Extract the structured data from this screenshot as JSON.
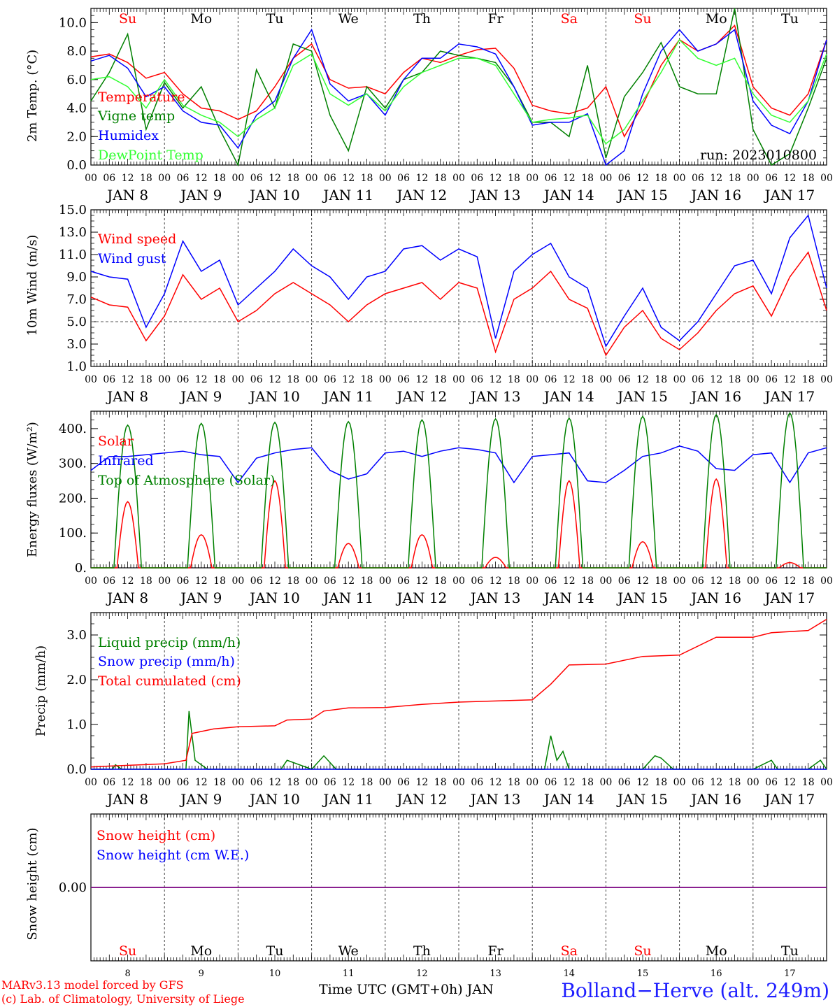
{
  "run_label": "run: 2023010800",
  "day_names": [
    "Su",
    "Mo",
    "Tu",
    "We",
    "Th",
    "Fr",
    "Sa",
    "Su",
    "Mo",
    "Tu"
  ],
  "weekend_flags": [
    true,
    false,
    false,
    false,
    false,
    false,
    true,
    true,
    false,
    false
  ],
  "date_labels": [
    "JAN  8",
    "JAN  9",
    "JAN 10",
    "JAN 11",
    "JAN 12",
    "JAN 13",
    "JAN 14",
    "JAN 15",
    "JAN 16",
    "JAN 17"
  ],
  "day_numbers": [
    "8",
    "9",
    "10",
    "11",
    "12",
    "13",
    "14",
    "15",
    "16",
    "17"
  ],
  "hour_ticks": [
    "00",
    "06",
    "12",
    "18"
  ],
  "last_hour_tick": "00",
  "colors": {
    "red": "#ff0000",
    "darkgreen": "#008000",
    "blue": "#0000ff",
    "lightgreen": "#33ff33",
    "purple": "#7a0080"
  },
  "footer": {
    "model_line": "MARv3.13 model forced by GFS",
    "lab_line": "(c) Lab. of Climatology, University of Liege",
    "time_axis_label": "Time UTC (GMT+0h) JAN",
    "station": "Bolland−Herve (alt. 249m)"
  },
  "chart_data": [
    {
      "type": "line",
      "ylabel": "2m Temp. (°C)",
      "ylim": [
        0,
        11
      ],
      "yticks": [
        "0.0",
        "2.0",
        "4.0",
        "6.0",
        "8.0",
        "10.0"
      ],
      "ytick_values": [
        0,
        2,
        4,
        6,
        8,
        10
      ],
      "x_unit": "hours since 2023-01-08 00 UTC",
      "series": [
        {
          "name": "Temperature",
          "color": "#ff0000",
          "x": [
            0,
            6,
            12,
            18,
            24,
            30,
            36,
            42,
            48,
            54,
            60,
            66,
            72,
            78,
            84,
            90,
            96,
            102,
            108,
            114,
            120,
            126,
            132,
            138,
            144,
            150,
            156,
            162,
            168,
            174,
            180,
            186,
            192,
            198,
            204,
            210,
            216,
            222,
            228,
            234,
            240
          ],
          "y": [
            7.6,
            7.8,
            7.2,
            6.1,
            6.5,
            5.0,
            4.0,
            3.8,
            3.2,
            3.8,
            5.5,
            7.5,
            8.5,
            6.0,
            5.4,
            5.5,
            5.0,
            6.5,
            7.5,
            7.2,
            7.7,
            8.1,
            8.2,
            6.8,
            4.2,
            3.8,
            3.6,
            4.0,
            5.5,
            2.0,
            4.2,
            7.0,
            8.8,
            8.0,
            8.5,
            9.8,
            5.5,
            4.0,
            3.5,
            5.0,
            8.8
          ]
        },
        {
          "name": "Vigne temp",
          "color": "#008000",
          "x": [
            0,
            6,
            12,
            18,
            24,
            30,
            36,
            42,
            48,
            54,
            60,
            66,
            72,
            78,
            84,
            90,
            96,
            102,
            108,
            114,
            120,
            126,
            132,
            138,
            144,
            150,
            156,
            162,
            168,
            174,
            180,
            186,
            192,
            198,
            204,
            210,
            216,
            222,
            228,
            234,
            240
          ],
          "y": [
            4.5,
            6.5,
            9.2,
            2.5,
            5.8,
            4.0,
            5.5,
            2.5,
            0.0,
            6.7,
            4.0,
            8.5,
            8.0,
            3.5,
            1.0,
            5.5,
            4.0,
            6.0,
            6.5,
            8.0,
            7.7,
            7.5,
            7.2,
            5.5,
            3.0,
            3.0,
            2.0,
            7.0,
            0.5,
            4.8,
            6.5,
            8.6,
            5.5,
            5.0,
            5.0,
            11.0,
            2.5,
            0.0,
            0.8,
            4.0,
            7.5
          ]
        },
        {
          "name": "Humidex",
          "color": "#0000ff",
          "x": [
            0,
            6,
            12,
            18,
            24,
            30,
            36,
            42,
            48,
            54,
            60,
            66,
            72,
            78,
            84,
            90,
            96,
            102,
            108,
            114,
            120,
            126,
            132,
            138,
            144,
            150,
            156,
            162,
            168,
            174,
            180,
            186,
            192,
            198,
            204,
            210,
            216,
            222,
            228,
            234,
            240
          ],
          "y": [
            7.3,
            7.7,
            6.8,
            4.8,
            5.5,
            3.8,
            3.0,
            2.8,
            1.2,
            3.5,
            4.5,
            7.5,
            9.5,
            5.7,
            4.5,
            5.0,
            3.5,
            6.0,
            7.5,
            7.5,
            8.5,
            8.3,
            7.8,
            5.5,
            2.8,
            3.0,
            3.0,
            3.6,
            0.0,
            1.0,
            5.0,
            8.0,
            9.5,
            8.0,
            8.5,
            9.5,
            4.5,
            2.8,
            2.2,
            4.5,
            8.8
          ]
        },
        {
          "name": "DewPoint Temp",
          "color": "#33ff33",
          "x": [
            0,
            6,
            12,
            18,
            24,
            30,
            36,
            42,
            48,
            54,
            60,
            66,
            72,
            78,
            84,
            90,
            96,
            102,
            108,
            114,
            120,
            126,
            132,
            138,
            144,
            150,
            156,
            162,
            168,
            174,
            180,
            186,
            192,
            198,
            204,
            210,
            216,
            222,
            228,
            234,
            240
          ],
          "y": [
            6.0,
            6.2,
            5.5,
            4.0,
            6.0,
            4.2,
            3.5,
            3.0,
            2.0,
            3.2,
            4.0,
            7.0,
            7.8,
            5.0,
            4.2,
            5.0,
            3.8,
            5.5,
            6.5,
            7.0,
            7.5,
            7.5,
            7.0,
            5.0,
            3.0,
            3.2,
            3.3,
            3.5,
            1.5,
            2.5,
            4.5,
            6.5,
            8.8,
            7.5,
            7.0,
            7.5,
            5.0,
            3.5,
            3.0,
            4.5,
            7.8
          ]
        }
      ]
    },
    {
      "type": "line",
      "ylabel": "10m Wind (m/s)",
      "ylim": [
        1,
        15
      ],
      "yticks": [
        "1.0",
        "3.0",
        "5.0",
        "7.0",
        "9.0",
        "11.0",
        "13.0",
        "15.0"
      ],
      "ytick_values": [
        1,
        3,
        5,
        7,
        9,
        11,
        13,
        15
      ],
      "ref_line": 5,
      "x_unit": "hours since 2023-01-08 00 UTC",
      "series": [
        {
          "name": "Wind speed",
          "color": "#ff0000",
          "x": [
            0,
            6,
            12,
            18,
            24,
            30,
            36,
            42,
            48,
            54,
            60,
            66,
            72,
            78,
            84,
            90,
            96,
            102,
            108,
            114,
            120,
            126,
            132,
            138,
            144,
            150,
            156,
            162,
            168,
            174,
            180,
            186,
            192,
            198,
            204,
            210,
            216,
            222,
            228,
            234,
            240
          ],
          "y": [
            7.2,
            6.5,
            6.3,
            3.3,
            5.5,
            9.2,
            7.0,
            8.0,
            5.0,
            6.0,
            7.5,
            8.5,
            7.5,
            6.5,
            5.0,
            6.5,
            7.5,
            8.0,
            8.5,
            7.0,
            8.5,
            8.0,
            2.3,
            7.0,
            8.0,
            9.5,
            7.0,
            6.2,
            2.0,
            4.5,
            6.0,
            3.5,
            2.5,
            4.0,
            6.0,
            7.5,
            8.2,
            5.5,
            9.0,
            11.2,
            6.0
          ]
        },
        {
          "name": "Wind gust",
          "color": "#0000ff",
          "x": [
            0,
            6,
            12,
            18,
            24,
            30,
            36,
            42,
            48,
            54,
            60,
            66,
            72,
            78,
            84,
            90,
            96,
            102,
            108,
            114,
            120,
            126,
            132,
            138,
            144,
            150,
            156,
            162,
            168,
            174,
            180,
            186,
            192,
            198,
            204,
            210,
            216,
            222,
            228,
            234,
            240
          ],
          "y": [
            9.5,
            9.0,
            8.8,
            4.5,
            7.5,
            12.2,
            9.5,
            10.5,
            6.5,
            8.0,
            9.5,
            11.5,
            10.0,
            9.0,
            7.0,
            9.0,
            9.5,
            11.5,
            11.8,
            10.5,
            11.5,
            10.8,
            3.5,
            9.5,
            11.0,
            12.0,
            9.0,
            8.0,
            2.8,
            5.5,
            8.0,
            4.5,
            3.3,
            5.0,
            7.5,
            10.0,
            10.5,
            7.5,
            12.5,
            14.5,
            8.0
          ]
        }
      ]
    },
    {
      "type": "line",
      "ylabel": "Energy fluxes (W/m²)",
      "ylim": [
        0,
        450
      ],
      "yticks": [
        "0.",
        "100.",
        "200.",
        "300.",
        "400."
      ],
      "ytick_values": [
        0,
        100,
        200,
        300,
        400
      ],
      "x_unit": "hours since 2023-01-08 00 UTC",
      "daily_peak_hour": 12,
      "series": [
        {
          "name": "Solar",
          "color": "#ff0000",
          "daily_peaks": [
            190,
            95,
            250,
            70,
            95,
            30,
            250,
            75,
            255,
            15
          ]
        },
        {
          "name": "Infrared",
          "color": "#0000ff",
          "x": [
            0,
            6,
            12,
            18,
            24,
            30,
            36,
            42,
            48,
            54,
            60,
            66,
            72,
            78,
            84,
            90,
            96,
            102,
            108,
            114,
            120,
            126,
            132,
            138,
            144,
            150,
            156,
            162,
            168,
            174,
            180,
            186,
            192,
            198,
            204,
            210,
            216,
            222,
            228,
            234,
            240
          ],
          "y": [
            280,
            320,
            320,
            325,
            330,
            335,
            325,
            320,
            245,
            315,
            330,
            340,
            345,
            280,
            255,
            270,
            330,
            335,
            320,
            335,
            345,
            340,
            330,
            245,
            320,
            325,
            330,
            250,
            245,
            280,
            320,
            330,
            350,
            335,
            285,
            280,
            325,
            330,
            245,
            330,
            345
          ]
        },
        {
          "name": "Top of Atmosphere (Solar)",
          "color": "#008000",
          "daily_peaks": [
            410,
            415,
            418,
            420,
            425,
            428,
            430,
            435,
            440,
            445
          ]
        }
      ]
    },
    {
      "type": "line",
      "ylabel": "Precip (mm/h)",
      "ylim": [
        0,
        3.5
      ],
      "yticks": [
        "0.0",
        "1.0",
        "2.0",
        "3.0"
      ],
      "ytick_values": [
        0,
        1,
        2,
        3
      ],
      "x_unit": "hours since 2023-01-08 00 UTC",
      "series": [
        {
          "name": "Liquid precip (mm/h)",
          "color": "#008000",
          "x": [
            0,
            7,
            8,
            10,
            20,
            24,
            28,
            31,
            32,
            34,
            38,
            48,
            62,
            64,
            72,
            76,
            80,
            90,
            96,
            120,
            148,
            150,
            152,
            154,
            156,
            170,
            180,
            184,
            186,
            190,
            200,
            216,
            222,
            224,
            226,
            234,
            238,
            240
          ],
          "y": [
            0,
            0,
            0.1,
            0,
            0,
            0,
            0,
            0,
            1.3,
            0.2,
            0,
            0,
            0,
            0.2,
            0,
            0.3,
            0,
            0,
            0,
            0,
            0,
            0.75,
            0.2,
            0.4,
            0,
            0,
            0,
            0.3,
            0.25,
            0,
            0,
            0,
            0.2,
            0,
            0,
            0,
            0.2,
            0
          ]
        },
        {
          "name": "Snow precip (mm/h)",
          "color": "#0000ff",
          "x": [
            0,
            240
          ],
          "y": [
            0,
            0
          ]
        },
        {
          "name": "Total cumulated (cm)",
          "color": "#ff0000",
          "x": [
            0,
            6,
            24,
            31,
            33,
            40,
            48,
            60,
            64,
            72,
            76,
            84,
            96,
            108,
            120,
            144,
            150,
            156,
            168,
            180,
            192,
            204,
            216,
            222,
            234,
            240
          ],
          "y": [
            0.05,
            0.07,
            0.12,
            0.2,
            0.8,
            0.9,
            0.95,
            0.97,
            1.1,
            1.12,
            1.3,
            1.37,
            1.38,
            1.45,
            1.5,
            1.55,
            1.9,
            2.33,
            2.35,
            2.52,
            2.55,
            2.95,
            2.95,
            3.05,
            3.1,
            3.35
          ]
        }
      ]
    },
    {
      "type": "line",
      "ylabel": "Snow height (cm)",
      "ylim": [
        -1,
        1
      ],
      "yticks": [
        "0.00"
      ],
      "ytick_values": [
        0
      ],
      "x_unit": "hours since 2023-01-08 00 UTC",
      "series": [
        {
          "name": "Snow height (cm)",
          "color": "#ff0000",
          "x": [
            0,
            240
          ],
          "y": [
            0,
            0
          ]
        },
        {
          "name": "Snow height (cm W.E.)",
          "color": "#0000ff",
          "x": [
            0,
            240
          ],
          "y": [
            0,
            0
          ]
        }
      ]
    }
  ]
}
